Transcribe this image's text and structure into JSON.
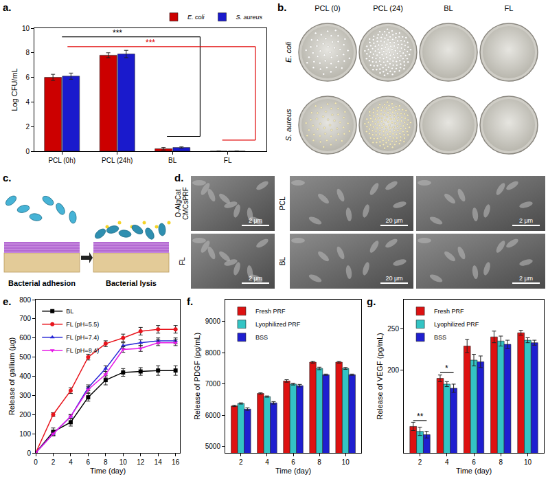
{
  "chart_data": [
    {
      "label": "a.",
      "type": "bar",
      "categories": [
        "PCL (0h)",
        "PCL (24h)",
        "BL",
        "FL"
      ],
      "y_label": "Log CFU/mL",
      "series": [
        {
          "name": "E. coli",
          "color": "#cc0000",
          "values": [
            6.0,
            7.8,
            0.2,
            0.0
          ],
          "errors": [
            0.25,
            0.2,
            0.1,
            0.0
          ]
        },
        {
          "name": "S. aureus",
          "color": "#1a1acc",
          "values": [
            6.1,
            7.9,
            0.3,
            0.0
          ],
          "errors": [
            0.25,
            0.3,
            0.05,
            0.0
          ]
        }
      ],
      "ylim": [
        0,
        10
      ],
      "yticks": [
        0,
        2,
        4,
        6,
        8,
        10
      ],
      "grid": false,
      "legend": "top-right",
      "annotations": [
        {
          "text": "***",
          "color": "#000000"
        },
        {
          "text": "***",
          "color": "#e00000"
        }
      ]
    },
    {
      "label": "e.",
      "type": "line",
      "x": [
        0,
        2,
        4,
        6,
        8,
        10,
        12,
        14,
        16
      ],
      "x_label": "Time (day)",
      "y_label": "Release of gallium (µg)",
      "series": [
        {
          "name": "BL",
          "color": "#000000",
          "marker": "square",
          "values": [
            0,
            110,
            160,
            290,
            380,
            420,
            425,
            430,
            430
          ],
          "errors": [
            0,
            20,
            20,
            20,
            25,
            20,
            20,
            25,
            25
          ]
        },
        {
          "name": "FL (pH=5.5)",
          "color": "#e8141c",
          "marker": "circle",
          "values": [
            0,
            200,
            325,
            500,
            570,
            600,
            635,
            645,
            645
          ],
          "errors": [
            0,
            10,
            15,
            15,
            15,
            20,
            20,
            20,
            20
          ]
        },
        {
          "name": "FL (pH=7.4)",
          "color": "#2727d6",
          "marker": "triangle-up",
          "values": [
            0,
            100,
            190,
            340,
            440,
            560,
            575,
            585,
            585
          ],
          "errors": [
            0,
            10,
            10,
            15,
            15,
            15,
            15,
            15,
            15
          ]
        },
        {
          "name": "FL (pH=8.4)",
          "color": "#e619e6",
          "marker": "triangle-down",
          "values": [
            0,
            100,
            190,
            330,
            410,
            540,
            545,
            575,
            575
          ],
          "errors": [
            0,
            10,
            10,
            15,
            15,
            15,
            15,
            15,
            15
          ]
        }
      ],
      "xlim": [
        0,
        16.5
      ],
      "xticks": [
        0,
        2,
        4,
        6,
        8,
        10,
        12,
        14,
        16
      ],
      "ylim": [
        0,
        800
      ],
      "yticks": [
        0,
        100,
        200,
        300,
        400,
        500,
        600,
        700,
        800
      ],
      "grid": false,
      "legend": "top-left"
    },
    {
      "label": "f.",
      "type": "bar",
      "x": [
        2,
        4,
        6,
        8,
        10
      ],
      "x_label": "Time (day)",
      "y_label": "Release of PDGF (pg/mL)",
      "series": [
        {
          "name": "Fresh PRF",
          "color": "#dd1111",
          "values": [
            6300,
            6700,
            7100,
            7700,
            7700
          ],
          "errors": [
            20,
            20,
            40,
            30,
            30
          ]
        },
        {
          "name": "Lyophilized PRF",
          "color": "#33c4c4",
          "values": [
            6380,
            6600,
            7000,
            7500,
            7500
          ],
          "errors": [
            20,
            20,
            30,
            40,
            30
          ]
        },
        {
          "name": "BSS",
          "color": "#1f1fd0",
          "values": [
            6200,
            6400,
            6950,
            7300,
            7300
          ],
          "errors": [
            40,
            40,
            40,
            20,
            20
          ]
        }
      ],
      "xlim": [
        0.8,
        11.2
      ],
      "xticks": [
        2,
        4,
        6,
        8,
        10
      ],
      "ylim": [
        4800,
        9700
      ],
      "yticks": [
        5000,
        6000,
        7000,
        8000,
        9000
      ],
      "grid": false,
      "legend": "top-left"
    },
    {
      "label": "g.",
      "type": "bar",
      "x": [
        2,
        4,
        6,
        8,
        10
      ],
      "x_label": "Time (day)",
      "y_label": "Release of VEGF (pg/mL)",
      "series": [
        {
          "name": "Fresh PRF",
          "color": "#dd1111",
          "values": [
            132,
            190,
            229,
            240,
            245
          ],
          "errors": [
            5,
            4,
            8,
            7,
            3
          ]
        },
        {
          "name": "Lyophilized PRF",
          "color": "#33c4c4",
          "values": [
            126,
            183,
            212,
            235,
            236
          ],
          "errors": [
            5,
            3,
            7,
            6,
            3
          ]
        },
        {
          "name": "BSS",
          "color": "#1f1fd0",
          "values": [
            122,
            178,
            210,
            231,
            233
          ],
          "errors": [
            4,
            5,
            7,
            5,
            3
          ]
        }
      ],
      "xlim": [
        0.8,
        11.2
      ],
      "xticks": [
        2,
        4,
        6,
        8,
        10
      ],
      "ylim": [
        100,
        285
      ],
      "yticks": [
        200,
        250
      ],
      "grid": false,
      "legend": "top-left",
      "annotations": [
        {
          "text": "**",
          "color": "#000000"
        },
        {
          "text": "*",
          "color": "#000000"
        }
      ]
    }
  ],
  "figure_panels": {
    "b": {
      "label": "b.",
      "columns": [
        "PCL (0)",
        "PCL (24)",
        "BL",
        "FL"
      ],
      "rows": [
        "E. coli",
        "S. aureus"
      ]
    },
    "c": {
      "label": "c.",
      "captions": [
        "Bacterial adhesion",
        "Bacterial lysis"
      ]
    },
    "d": {
      "label": "d.",
      "images": [
        {
          "name": "O-AlgCat CMCsPRF",
          "scale_bars": [
            "2 μm"
          ]
        },
        {
          "name": "PCL",
          "scale_bars": [
            "20 μm",
            "2 μm"
          ]
        },
        {
          "name": "FL",
          "scale_bars": [
            "2 μm"
          ]
        },
        {
          "name": "BL",
          "scale_bars": [
            "20 μm",
            "2 μm"
          ]
        }
      ]
    }
  }
}
